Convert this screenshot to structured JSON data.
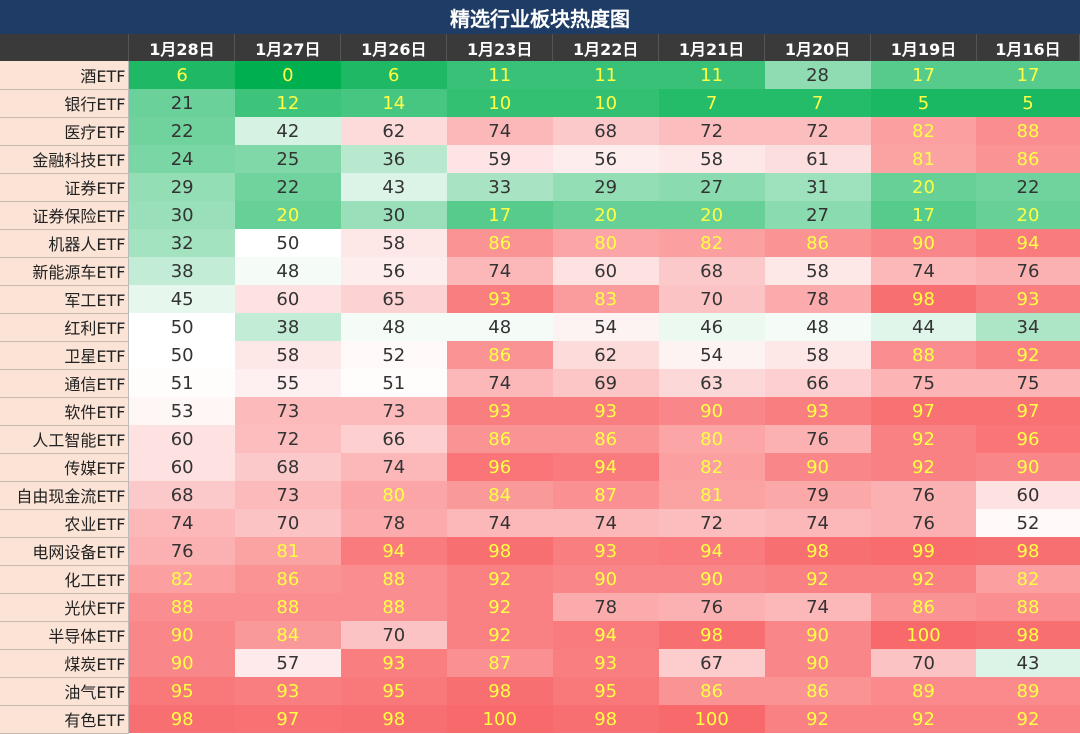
{
  "chart_data": {
    "type": "heatmap",
    "title": "精选行业板块热度图",
    "columns": [
      "1月28日",
      "1月27日",
      "1月26日",
      "1月23日",
      "1月22日",
      "1月21日",
      "1月20日",
      "1月19日",
      "1月16日"
    ],
    "rows": [
      "酒ETF",
      "银行ETF",
      "医疗ETF",
      "金融科技ETF",
      "证券ETF",
      "证券保险ETF",
      "机器人ETF",
      "新能源车ETF",
      "军工ETF",
      "红利ETF",
      "卫星ETF",
      "通信ETF",
      "软件ETF",
      "人工智能ETF",
      "传媒ETF",
      "自由现金流ETF",
      "农业ETF",
      "电网设备ETF",
      "化工ETF",
      "光伏ETF",
      "半导体ETF",
      "煤炭ETF",
      "油气ETF",
      "有色ETF"
    ],
    "values": [
      [
        6,
        0,
        6,
        11,
        11,
        11,
        28,
        17,
        17
      ],
      [
        21,
        12,
        14,
        10,
        10,
        7,
        7,
        5,
        5
      ],
      [
        22,
        42,
        62,
        74,
        68,
        72,
        72,
        82,
        88
      ],
      [
        24,
        25,
        36,
        59,
        56,
        58,
        61,
        81,
        86
      ],
      [
        29,
        22,
        43,
        33,
        29,
        27,
        31,
        20,
        22
      ],
      [
        30,
        20,
        30,
        17,
        20,
        20,
        27,
        17,
        20
      ],
      [
        32,
        50,
        58,
        86,
        80,
        82,
        86,
        90,
        94
      ],
      [
        38,
        48,
        56,
        74,
        60,
        68,
        58,
        74,
        76
      ],
      [
        45,
        60,
        65,
        93,
        83,
        70,
        78,
        98,
        93
      ],
      [
        50,
        38,
        48,
        48,
        54,
        46,
        48,
        44,
        34
      ],
      [
        50,
        58,
        52,
        86,
        62,
        54,
        58,
        88,
        92
      ],
      [
        51,
        55,
        51,
        74,
        69,
        63,
        66,
        75,
        75
      ],
      [
        53,
        73,
        73,
        93,
        93,
        90,
        93,
        97,
        97
      ],
      [
        60,
        72,
        66,
        86,
        86,
        80,
        76,
        92,
        96
      ],
      [
        60,
        68,
        74,
        96,
        94,
        82,
        90,
        92,
        90
      ],
      [
        68,
        73,
        80,
        84,
        87,
        81,
        79,
        76,
        60
      ],
      [
        74,
        70,
        78,
        74,
        74,
        72,
        74,
        76,
        52
      ],
      [
        76,
        81,
        94,
        98,
        93,
        94,
        98,
        99,
        98
      ],
      [
        82,
        86,
        88,
        92,
        90,
        90,
        92,
        92,
        82
      ],
      [
        88,
        88,
        88,
        92,
        78,
        76,
        74,
        86,
        88
      ],
      [
        90,
        84,
        70,
        92,
        94,
        98,
        90,
        100,
        98
      ],
      [
        90,
        57,
        93,
        87,
        93,
        67,
        90,
        70,
        43
      ],
      [
        95,
        93,
        95,
        98,
        95,
        86,
        86,
        89,
        89
      ],
      [
        98,
        97,
        98,
        100,
        98,
        100,
        92,
        92,
        92
      ]
    ],
    "scale": {
      "low_color": "#00b050",
      "mid_color": "#ffffff",
      "high_color": "#f8696b",
      "domain": [
        0,
        50,
        100
      ]
    },
    "text_colors": {
      "normal": "#333333",
      "highlight": "#ffff44"
    }
  }
}
